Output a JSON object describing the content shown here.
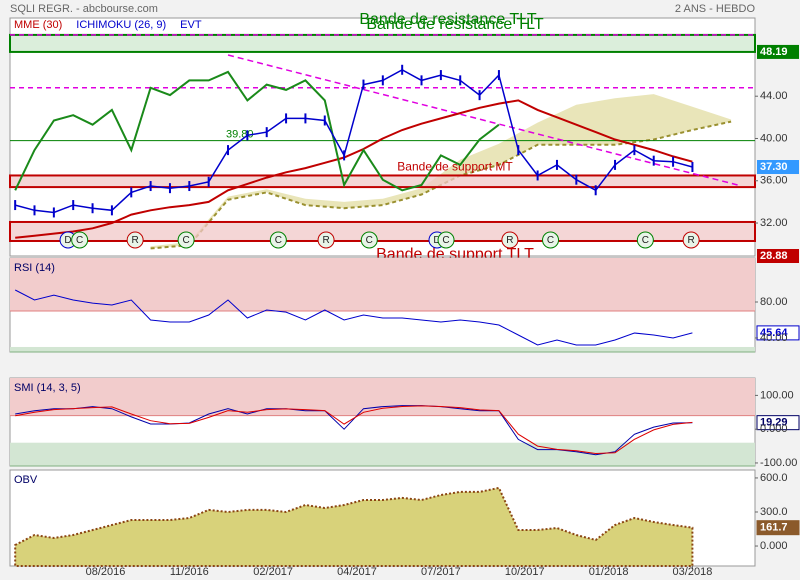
{
  "header": {
    "left": "SQLI REGR. - abcbourse.com",
    "right": "2 ANS - HEBDO"
  },
  "chart_data": [
    {
      "type": "price",
      "title": "Bande de resistance TLT",
      "events_label": "EVT",
      "x": [
        0,
        3,
        6,
        9,
        12,
        15,
        18,
        21,
        24,
        27,
        30,
        33,
        36,
        39,
        42,
        45,
        48,
        51,
        54,
        57,
        60,
        63,
        66,
        69,
        72,
        75,
        78,
        81,
        84,
        87,
        90,
        93,
        96,
        99,
        102,
        105
      ],
      "xlim": [
        -0.8,
        114.7
      ],
      "ylim": [
        28.88,
        51.4
      ],
      "yticks": [
        {
          "value": 32,
          "label": "32.00"
        },
        {
          "value": 36,
          "label": "36.00"
        },
        {
          "value": 40,
          "label": "40.00"
        },
        {
          "value": 44,
          "label": "44.00"
        }
      ],
      "color": "#0000cc",
      "values": [
        33.7,
        33.2,
        33,
        33.7,
        33.4,
        33.2,
        34.9,
        35.5,
        35.3,
        35.5,
        35.9,
        38.9,
        40.3,
        40.6,
        41.9,
        41.9,
        41.7,
        38.4,
        45.1,
        45.5,
        46.5,
        45.5,
        46,
        45.5,
        44.1,
        46,
        38.9,
        36.5,
        37.5,
        36.1,
        35.1,
        37.5,
        38.9,
        37.9,
        37.8,
        37.3
      ],
      "price_marker": {
        "value": 37.3,
        "label": "37.30",
        "color": "#3399ff"
      },
      "series": [
        {
          "name": "MME (30)",
          "color": "#c00000",
          "legend_color": "#c00000",
          "values": [
            30.6,
            30.8,
            31.0,
            31.2,
            31.5,
            32.0,
            32.8,
            33.2,
            33.5,
            33.7,
            34.0,
            35.1,
            35.7,
            36.3,
            36.8,
            37.2,
            37.7,
            38.2,
            39.0,
            40.0,
            40.8,
            41.4,
            41.9,
            42.4,
            42.9,
            43.3,
            43.6,
            42.7,
            42.0,
            41.3,
            40.6,
            39.9,
            39.4,
            38.9,
            38.3,
            37.8
          ]
        },
        {
          "name": "ICHIMOKU (26, 9)",
          "color": "#1a8a1a",
          "legend_color": "#0000cc",
          "values": [
            35.1,
            38.9,
            41.7,
            42.2,
            41.3,
            42.7,
            38.9,
            44.8,
            44.1,
            45.5,
            45.5,
            46.3,
            43.6,
            45.1,
            44.6,
            45.5,
            43.6,
            35.6,
            38.9,
            36.1,
            35.1,
            35.6,
            38.4,
            37.5,
            39.9,
            41.3,
            null,
            null,
            null,
            null,
            null,
            null,
            null,
            null,
            null,
            null
          ]
        }
      ],
      "cloud": {
        "x": [
          21,
          27,
          33,
          39,
          45,
          51,
          57,
          63,
          69,
          75,
          81,
          87,
          93,
          99,
          105,
          111
        ],
        "upper": [
          29.8,
          30.2,
          34.5,
          35.2,
          34.3,
          34.0,
          34.3,
          35.3,
          38.0,
          39.5,
          41.5,
          43.2,
          43.8,
          44.2,
          43.0,
          41.8
        ],
        "lower": [
          29.6,
          29.9,
          34.2,
          34.9,
          33.7,
          33.4,
          33.7,
          34.7,
          36.5,
          37.5,
          39.4,
          39.4,
          39.4,
          39.9,
          40.8,
          41.6
        ],
        "fill": "#e4dfa8",
        "line": "#9a9030"
      },
      "bands": [
        {
          "label": "Bande de resistance TLT",
          "range": [
            48.19,
            49.8
          ],
          "fill": "#cfe8cf",
          "stroke": "#008000",
          "label_color": "#008000"
        },
        {
          "label": "Bande de support MT",
          "range": [
            35.4,
            36.5
          ],
          "fill": "#f0c8c8",
          "stroke": "#c00000",
          "label_color": "#c00000"
        },
        {
          "label": "Bande de support TLT",
          "range": [
            30.3,
            32.1
          ],
          "fill": "#f0c8c8",
          "stroke": "#c00000",
          "label_color": "#c00000"
        }
      ],
      "hlines": [
        {
          "value": 49.8,
          "color": "#e000e0",
          "dash": true
        },
        {
          "value": 44.8,
          "color": "#e000e0",
          "dash": true
        },
        {
          "value": 39.8,
          "label": "39.80",
          "color": "#008000",
          "dash": false
        }
      ],
      "trendline": {
        "x": [
          33,
          112
        ],
        "y": [
          47.9,
          35.6
        ],
        "color": "#e000e0"
      },
      "levels": [
        {
          "value": 48.19,
          "color": "#008000"
        },
        {
          "value": 28.88,
          "color": "#c00000"
        }
      ],
      "events": [
        {
          "x": 8.2,
          "label": "D",
          "color": "#0000cc"
        },
        {
          "x": 10,
          "label": "C",
          "color": "#008000"
        },
        {
          "x": 18.6,
          "label": "R",
          "color": "#c00000"
        },
        {
          "x": 26.5,
          "label": "C",
          "color": "#008000"
        },
        {
          "x": 40.8,
          "label": "C",
          "color": "#008000"
        },
        {
          "x": 48.2,
          "label": "R",
          "color": "#c00000"
        },
        {
          "x": 54.9,
          "label": "C",
          "color": "#008000"
        },
        {
          "x": 65.4,
          "label": "D",
          "color": "#0000cc"
        },
        {
          "x": 66.8,
          "label": "C",
          "color": "#008000"
        },
        {
          "x": 76.7,
          "label": "R",
          "color": "#c00000"
        },
        {
          "x": 83,
          "label": "C",
          "color": "#008000"
        },
        {
          "x": 97.7,
          "label": "C",
          "color": "#008000"
        },
        {
          "x": 104.8,
          "label": "R",
          "color": "#c00000"
        }
      ]
    },
    {
      "type": "line",
      "title": "RSI (14)",
      "x": [
        0,
        3,
        6,
        9,
        12,
        15,
        18,
        21,
        24,
        27,
        30,
        33,
        36,
        39,
        42,
        45,
        48,
        51,
        54,
        57,
        60,
        63,
        66,
        69,
        72,
        75,
        78,
        81,
        84,
        87,
        90,
        93,
        96,
        99,
        102,
        105
      ],
      "xlim": [
        -0.8,
        114.7
      ],
      "ylim": [
        24.4,
        128.9
      ],
      "yticks": [
        {
          "value": 40,
          "label": "40.00"
        },
        {
          "value": 80,
          "label": "80.00"
        }
      ],
      "zones": [
        {
          "from": 70,
          "to": 128.9,
          "color": "#f2cccc",
          "line": "#e08080"
        },
        {
          "from": 24.4,
          "to": 30,
          "color": "#d3e6d3",
          "line": "#80b080"
        }
      ],
      "box": {
        "fill": "#ffffff",
        "stroke": "#0000cc",
        "text": "#0000cc"
      },
      "series": [
        {
          "color": "#0000cc",
          "values": [
            93.3,
            82.2,
            87.7,
            82.2,
            78.8,
            76.6,
            82.2,
            60,
            57.7,
            57.7,
            65.5,
            82.2,
            62.2,
            71.1,
            68.8,
            60,
            71.1,
            60,
            65.5,
            62.2,
            62.2,
            60,
            57.7,
            60,
            57.7,
            54.4,
            43.3,
            32.2,
            37.7,
            32.2,
            32.2,
            37.7,
            45.5,
            43.3,
            40,
            45.64
          ]
        }
      ]
    },
    {
      "type": "line",
      "title": "SMI (14, 3, 5)",
      "x": [
        0,
        3,
        6,
        9,
        12,
        15,
        18,
        21,
        24,
        27,
        30,
        33,
        36,
        39,
        42,
        45,
        48,
        51,
        54,
        57,
        60,
        63,
        66,
        69,
        72,
        75,
        78,
        81,
        84,
        87,
        90,
        93,
        96,
        99,
        102,
        105
      ],
      "xlim": [
        -0.8,
        114.7
      ],
      "ylim": [
        -109,
        151.5
      ],
      "yticks": [
        {
          "value": -100,
          "label": "-100.00"
        },
        {
          "value": 0,
          "label": "0.000"
        },
        {
          "value": 100,
          "label": "100.00"
        }
      ],
      "zones": [
        {
          "from": 40,
          "to": 151.5,
          "color": "#f2cccc",
          "line": "#e08080"
        },
        {
          "from": -109,
          "to": -40,
          "color": "#d3e6d3",
          "line": "#80b080"
        }
      ],
      "box": {
        "fill": "#ffffff",
        "stroke": "#000066",
        "text": "#000066"
      },
      "series": [
        {
          "color": "#0000aa",
          "values": [
            45,
            54.5,
            60.6,
            60.6,
            66.7,
            60.6,
            36.4,
            15.2,
            15.2,
            18.2,
            45,
            60.6,
            45,
            60.6,
            60.6,
            54.5,
            54.5,
            0,
            60.6,
            66.7,
            69.7,
            69.7,
            66.7,
            60.6,
            54.5,
            54.5,
            -30.3,
            -60.6,
            -60.6,
            -66.7,
            -75.8,
            -66.7,
            -15.2,
            6.1,
            18.2,
            19.29
          ]
        },
        {
          "color": "#dd0000",
          "values": [
            40,
            50,
            58,
            61,
            64,
            66,
            45,
            25,
            16,
            17,
            35,
            55,
            50,
            58,
            60,
            58,
            55,
            15,
            50,
            62,
            67,
            69,
            67,
            64,
            57,
            55,
            -15,
            -50,
            -60,
            -64,
            -72,
            -70,
            -30,
            -2,
            14,
            20
          ]
        }
      ]
    },
    {
      "type": "area",
      "title": "OBV",
      "x": [
        0,
        3,
        6,
        9,
        12,
        15,
        18,
        21,
        24,
        27,
        30,
        33,
        36,
        39,
        42,
        45,
        48,
        51,
        54,
        57,
        60,
        63,
        66,
        69,
        72,
        75,
        78,
        81,
        84,
        87,
        90,
        93,
        96,
        99,
        102,
        105
      ],
      "xlim": [
        -0.8,
        114.7
      ],
      "ylim": [
        -176,
        670
      ],
      "yticks": [
        {
          "value": 0,
          "label": "0.000"
        },
        {
          "value": 300,
          "label": "300.0"
        },
        {
          "value": 600,
          "label": "600.0"
        }
      ],
      "xticks": [
        {
          "value": 14,
          "label": "08/2016"
        },
        {
          "value": 27,
          "label": "11/2016"
        },
        {
          "value": 40,
          "label": "02/2017"
        },
        {
          "value": 53,
          "label": "04/2017"
        },
        {
          "value": 66,
          "label": "07/2017"
        },
        {
          "value": 79,
          "label": "10/2017"
        },
        {
          "value": 92,
          "label": "01/2018"
        },
        {
          "value": 105,
          "label": "03/2018"
        }
      ],
      "box": {
        "fill": "#8b5a2b",
        "stroke": "#8b5a2b",
        "text": "#ffffff"
      },
      "series": [
        {
          "color": "#d8d27a",
          "line": "#8b4513",
          "values": [
            9,
            97,
            71,
            97,
            141,
            185,
            229,
            229,
            229,
            247,
            318,
            300,
            318,
            318,
            300,
            362,
            335,
            362,
            406,
            406,
            424,
            406,
            450,
            477,
            477,
            512,
            141,
            141,
            159,
            97,
            53,
            185,
            247,
            212,
            185,
            161.7
          ]
        }
      ]
    }
  ]
}
